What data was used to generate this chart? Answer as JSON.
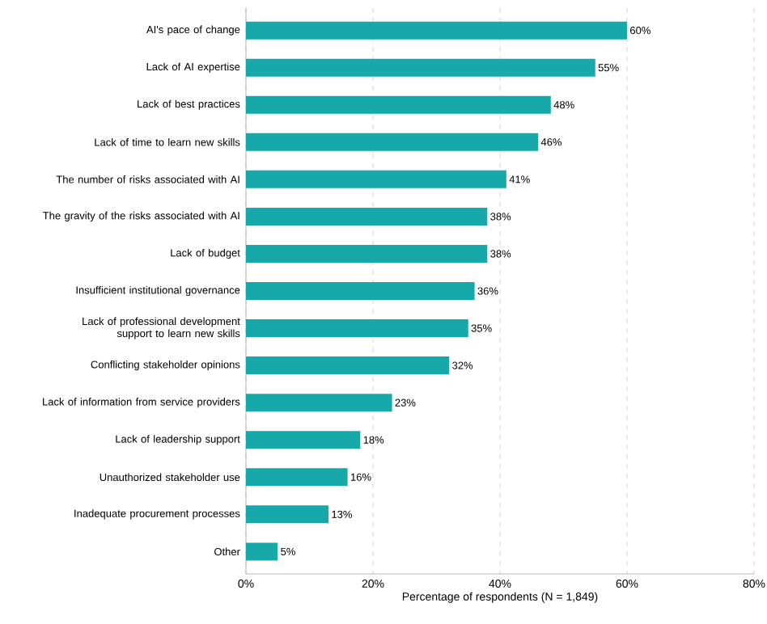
{
  "chart_data": {
    "type": "bar",
    "orientation": "horizontal",
    "categories": [
      "AI's pace of change",
      "Lack of AI expertise",
      "Lack of best practices",
      "Lack of time to learn new skills",
      "The number of risks associated with AI",
      "The gravity of the risks associated with AI",
      "Lack of budget",
      "Insufficient institutional governance",
      "Lack of professional development support to learn new skills",
      "Conflicting stakeholder opinions",
      "Lack of information from service providers",
      "Lack of leadership support",
      "Unauthorized stakeholder use",
      "Inadequate procurement processes",
      "Other"
    ],
    "values": [
      60,
      55,
      48,
      46,
      41,
      38,
      38,
      36,
      35,
      32,
      23,
      18,
      16,
      13,
      5
    ],
    "value_labels": [
      "60%",
      "55%",
      "48%",
      "46%",
      "41%",
      "38%",
      "38%",
      "36%",
      "35%",
      "32%",
      "23%",
      "18%",
      "16%",
      "13%",
      "5%"
    ],
    "color": "#17a9a9",
    "xlabel": "Percentage of respondents (N = 1,849)",
    "xlim": [
      0,
      80
    ],
    "xticks": [
      {
        "value": 0,
        "label": "0%"
      },
      {
        "value": 20,
        "label": "20%"
      },
      {
        "value": 40,
        "label": "40%"
      },
      {
        "value": 60,
        "label": "60%"
      },
      {
        "value": 80,
        "label": "80%"
      }
    ],
    "grid": "x"
  }
}
